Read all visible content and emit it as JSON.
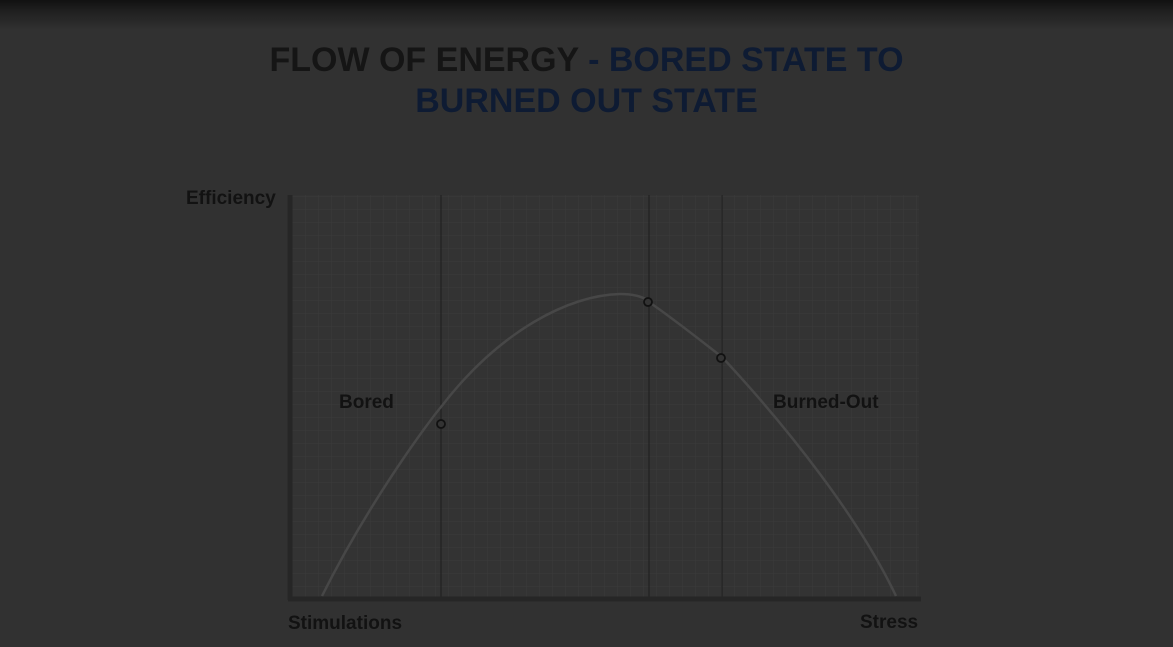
{
  "title": {
    "part1": "FLOW OF ENERGY",
    "part2": " - BORED STATE TO",
    "part3": "BURNED OUT STATE"
  },
  "axes": {
    "y_label": "Efficiency",
    "x_left_label": "Stimulations",
    "x_right_label": "Stress"
  },
  "zones": {
    "left": "Bored",
    "right": "Burned-Out"
  },
  "colors": {
    "background": "#313131",
    "title_dark": "#151515",
    "title_blue": "#0e1b33",
    "curve": "#454545",
    "grid": "#3a3a3a",
    "divider": "#1c1c1c",
    "axis": "#262626"
  }
}
